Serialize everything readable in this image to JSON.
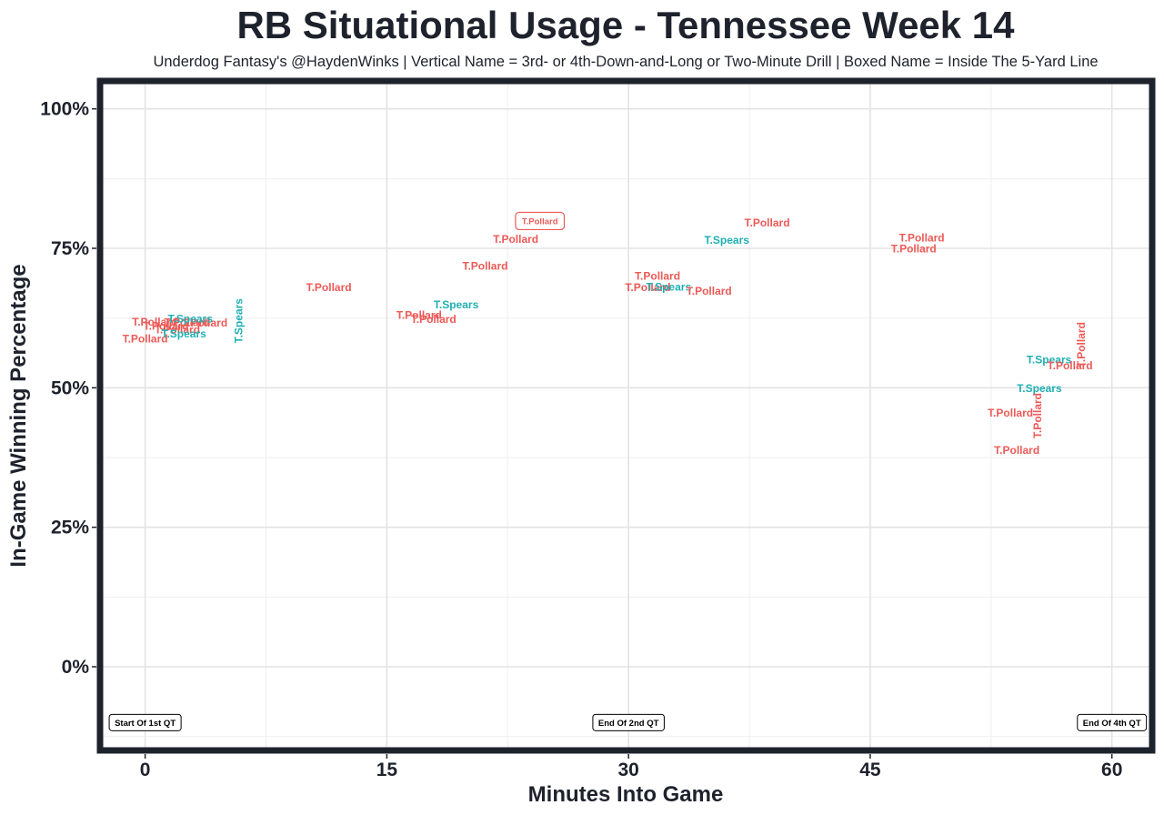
{
  "colors": {
    "pollard": "#ec5a57",
    "spears": "#1fb0b4",
    "text": "#1e222c",
    "frame": "#1e222c"
  },
  "chart_data": {
    "type": "scatter",
    "title": "RB Situational Usage - Tennessee Week 14",
    "subtitle": "Underdog Fantasy's @HaydenWinks | Vertical Name = 3rd- or 4th-Down-and-Long or Two-Minute Drill | Boxed Name = Inside The 5-Yard Line",
    "xlabel": "Minutes Into Game",
    "ylabel": "In-Game Winning Percentage",
    "xlim": [
      -2.8,
      62.5
    ],
    "ylim": [
      -15,
      105
    ],
    "x_ticks": [
      0,
      15,
      30,
      45,
      60
    ],
    "x_tick_labels": [
      "0",
      "15",
      "30",
      "45",
      "60"
    ],
    "y_ticks": [
      0,
      25,
      50,
      75,
      100
    ],
    "y_tick_labels": [
      "0%",
      "25%",
      "50%",
      "75%",
      "100%"
    ],
    "grid": true,
    "legend": "none",
    "points": [
      {
        "x": 0.0,
        "y": 58.8,
        "player": "T.Pollard",
        "vertical": false,
        "boxed": false
      },
      {
        "x": 0.6,
        "y": 61.8,
        "player": "T.Pollard",
        "vertical": false,
        "boxed": false
      },
      {
        "x": 1.3,
        "y": 61.1,
        "player": "T.Pollard",
        "vertical": false,
        "boxed": false
      },
      {
        "x": 2.0,
        "y": 60.4,
        "player": "T.Pollard",
        "vertical": false,
        "boxed": false
      },
      {
        "x": 2.6,
        "y": 61.7,
        "player": "T.Pollard",
        "vertical": false,
        "boxed": false
      },
      {
        "x": 3.7,
        "y": 61.6,
        "player": "T.Pollard",
        "vertical": false,
        "boxed": false
      },
      {
        "x": 2.8,
        "y": 62.4,
        "player": "T.Spears",
        "vertical": false,
        "boxed": false
      },
      {
        "x": 2.4,
        "y": 59.7,
        "player": "T.Spears",
        "vertical": false,
        "boxed": false
      },
      {
        "x": 5.8,
        "y": 62.0,
        "player": "T.Spears",
        "vertical": true,
        "boxed": false
      },
      {
        "x": 11.4,
        "y": 68.0,
        "player": "T.Pollard",
        "vertical": false,
        "boxed": false
      },
      {
        "x": 17.0,
        "y": 63.0,
        "player": "T.Pollard",
        "vertical": false,
        "boxed": false
      },
      {
        "x": 17.9,
        "y": 62.3,
        "player": "T.Pollard",
        "vertical": false,
        "boxed": false
      },
      {
        "x": 19.3,
        "y": 64.9,
        "player": "T.Spears",
        "vertical": false,
        "boxed": false
      },
      {
        "x": 21.1,
        "y": 71.8,
        "player": "T.Pollard",
        "vertical": false,
        "boxed": false
      },
      {
        "x": 23.0,
        "y": 76.6,
        "player": "T.Pollard",
        "vertical": false,
        "boxed": false
      },
      {
        "x": 24.5,
        "y": 79.9,
        "player": "T.Pollard",
        "vertical": false,
        "boxed": true
      },
      {
        "x": 31.8,
        "y": 70.0,
        "player": "T.Pollard",
        "vertical": false,
        "boxed": false
      },
      {
        "x": 31.2,
        "y": 68.0,
        "player": "T.Pollard",
        "vertical": false,
        "boxed": false
      },
      {
        "x": 32.5,
        "y": 68.1,
        "player": "T.Spears",
        "vertical": false,
        "boxed": false
      },
      {
        "x": 35.0,
        "y": 67.3,
        "player": "T.Pollard",
        "vertical": false,
        "boxed": false
      },
      {
        "x": 36.1,
        "y": 76.5,
        "player": "T.Spears",
        "vertical": false,
        "boxed": false
      },
      {
        "x": 38.6,
        "y": 79.6,
        "player": "T.Pollard",
        "vertical": false,
        "boxed": false
      },
      {
        "x": 48.2,
        "y": 76.9,
        "player": "T.Pollard",
        "vertical": false,
        "boxed": false
      },
      {
        "x": 47.7,
        "y": 74.9,
        "player": "T.Pollard",
        "vertical": false,
        "boxed": false
      },
      {
        "x": 53.7,
        "y": 45.5,
        "player": "T.Pollard",
        "vertical": false,
        "boxed": false
      },
      {
        "x": 54.1,
        "y": 38.8,
        "player": "T.Pollard",
        "vertical": false,
        "boxed": false
      },
      {
        "x": 55.4,
        "y": 45.0,
        "player": "T.Pollard",
        "vertical": true,
        "boxed": false
      },
      {
        "x": 55.5,
        "y": 49.9,
        "player": "T.Spears",
        "vertical": false,
        "boxed": false
      },
      {
        "x": 56.1,
        "y": 55.0,
        "player": "T.Spears",
        "vertical": false,
        "boxed": false
      },
      {
        "x": 57.4,
        "y": 54.0,
        "player": "T.Pollard",
        "vertical": false,
        "boxed": false
      },
      {
        "x": 58.1,
        "y": 57.7,
        "player": "T.Pollard",
        "vertical": true,
        "boxed": false
      }
    ],
    "annotations": [
      {
        "x": 0,
        "y": -10,
        "text": "Start Of 1st QT"
      },
      {
        "x": 30,
        "y": -10,
        "text": "End Of 2nd QT"
      },
      {
        "x": 60,
        "y": -10,
        "text": "End Of 4th QT"
      }
    ]
  }
}
